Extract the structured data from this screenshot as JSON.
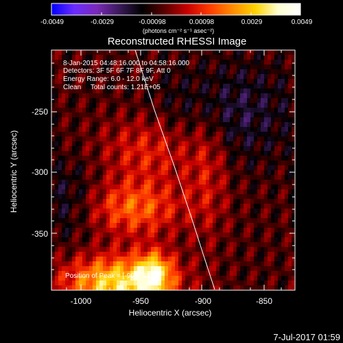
{
  "colorbar": {
    "tick_labels": [
      "-0.0049",
      "-0.0029",
      "-0.00098",
      "0.00098",
      "0.0029",
      "0.0049"
    ],
    "units": "(photons cm⁻² s⁻¹ asec⁻²)"
  },
  "title": "Reconstructed RHESSI Image",
  "annotation": {
    "line1": "8-Jan-2015 04:48:16.000 to 04:58:16.000",
    "line2": "Detectors: 3F 5F 6F 7F 8F 9F, Att 0",
    "line3": "Energy Range: 6.0 - 12.0 keV",
    "line4": "Clean     Total counts: 1.21E+05"
  },
  "peak_label": "Position of Peak = [-963,-397]",
  "x_axis": {
    "label": "Heliocentric X (arcsec)",
    "tick_labels": [
      "-1000",
      "-950",
      "-900",
      "-850"
    ]
  },
  "y_axis": {
    "label": "Heliocentric Y (arcsec)",
    "tick_labels": [
      "-250",
      "-300",
      "-350"
    ]
  },
  "timestamp": "7-Jul-2017 01:59",
  "colors": {
    "colormap": [
      "#0000ff",
      "#6a2cff",
      "#7a2ab8",
      "#3a1a5a",
      "#000000",
      "#5a0000",
      "#c80000",
      "#ff3c00",
      "#ff8c00",
      "#ffd200",
      "#ffffd0",
      "#ffffff"
    ]
  }
}
